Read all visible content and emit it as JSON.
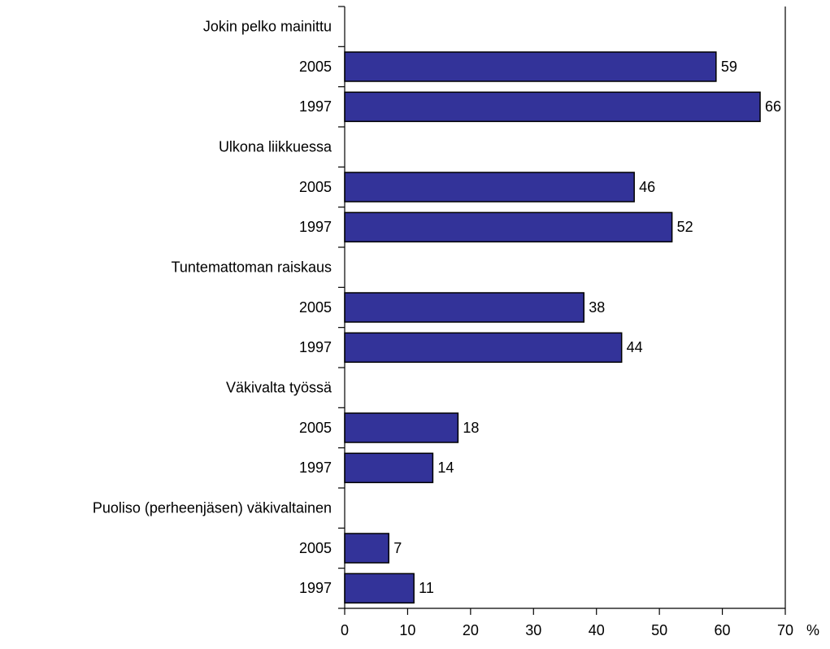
{
  "chart_data": {
    "type": "hbar",
    "categories": [
      "Jokin pelko mainittu",
      "2005",
      "1997",
      "Ulkona liikkuessa",
      "2005",
      "1997",
      "Tuntemattoman raiskaus",
      "2005",
      "1997",
      "Väkivalta työssä",
      "2005",
      "1997",
      "Puoliso (perheenjäsen) väkivaltainen",
      "2005",
      "1997"
    ],
    "values": [
      null,
      59,
      66,
      null,
      46,
      52,
      null,
      38,
      44,
      null,
      18,
      14,
      null,
      7,
      11
    ],
    "color": "#333399",
    "x_label": "%",
    "xlim": [
      0,
      70
    ],
    "xticks": [
      0,
      10,
      20,
      30,
      40,
      50,
      60,
      70
    ]
  }
}
